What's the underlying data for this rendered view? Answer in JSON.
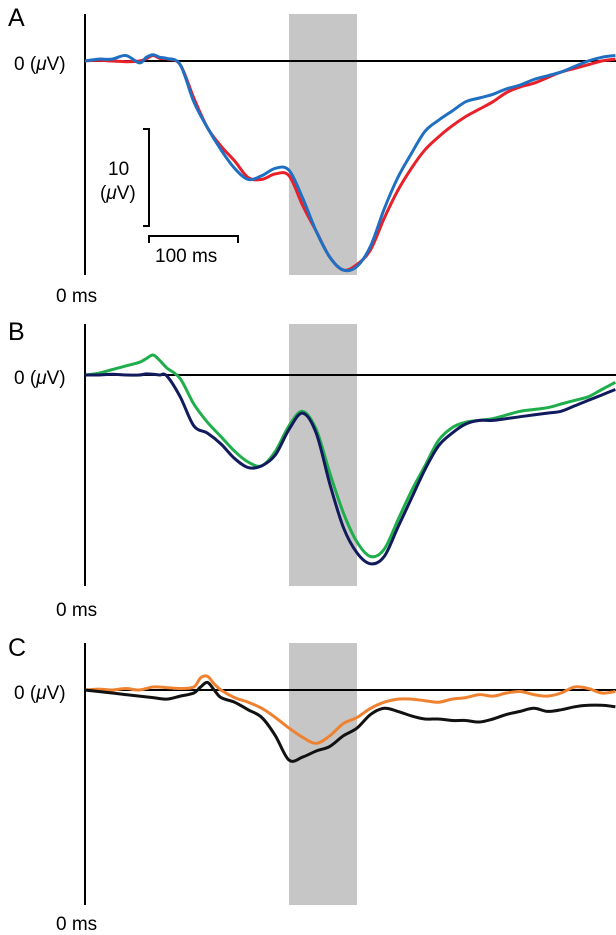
{
  "figure": {
    "panels": [
      {
        "letter": "A",
        "zero_label_pre": "0 (",
        "zero_label_mu": "μ",
        "zero_label_post": "V)",
        "time_label": "0 ms",
        "highlight_window_ms": [
          300,
          400
        ],
        "series": [
          {
            "color": "#e8202a",
            "x": [
              0,
              20,
              40,
              60,
              80,
              90,
              100,
              110,
              120,
              140,
              160,
              180,
              200,
              220,
              240,
              260,
              280,
              300,
              320,
              340,
              360,
              380,
              400,
              420,
              440,
              460,
              480,
              500,
              520,
              540,
              560,
              580,
              600,
              620,
              640,
              660,
              680,
              700,
              720,
              740,
              760,
              780
            ],
            "y": [
              0,
              0.2,
              0,
              -0.2,
              0,
              0.6,
              1.5,
              0.7,
              0.6,
              -1,
              -10,
              -18,
              -23,
              -27,
              -31.5,
              -32,
              -30.5,
              -31,
              -39,
              -46,
              -53,
              -56.5,
              -55,
              -51,
              -42.5,
              -35,
              -29,
              -24,
              -20.5,
              -17.5,
              -15,
              -13,
              -11,
              -8.5,
              -7,
              -6,
              -4.5,
              -3,
              -2,
              -1,
              0,
              0.5
            ]
          },
          {
            "color": "#1f6fc2",
            "x": [
              0,
              20,
              40,
              60,
              80,
              90,
              100,
              110,
              120,
              140,
              160,
              180,
              200,
              220,
              240,
              260,
              280,
              300,
              320,
              340,
              360,
              380,
              400,
              420,
              440,
              460,
              480,
              500,
              520,
              540,
              560,
              580,
              600,
              620,
              640,
              660,
              680,
              700,
              720,
              740,
              760,
              780
            ],
            "y": [
              0,
              0.5,
              0.5,
              1.5,
              -0.5,
              1,
              1.7,
              1,
              0.7,
              -1,
              -11,
              -18,
              -24,
              -29,
              -32,
              -31,
              -29,
              -29.5,
              -37,
              -46,
              -53,
              -56.5,
              -55.5,
              -50,
              -40,
              -31.5,
              -25,
              -19,
              -16,
              -13.5,
              -11,
              -10,
              -9,
              -7.5,
              -6.5,
              -5,
              -4,
              -3,
              -1.5,
              0,
              1,
              1.5
            ]
          }
        ]
      },
      {
        "letter": "B",
        "zero_label_pre": "0 (",
        "zero_label_mu": "μ",
        "zero_label_post": "V)",
        "time_label": "0 ms",
        "highlight_window_ms": [
          300,
          400
        ],
        "series": [
          {
            "color": "#1fae4b",
            "x": [
              0,
              20,
              40,
              60,
              80,
              90,
              100,
              110,
              120,
              140,
              160,
              180,
              200,
              220,
              240,
              260,
              280,
              300,
              320,
              340,
              360,
              380,
              400,
              420,
              440,
              460,
              480,
              500,
              520,
              540,
              560,
              580,
              600,
              620,
              640,
              660,
              680,
              700,
              720,
              740,
              760,
              780
            ],
            "y": [
              0,
              0.5,
              1.5,
              2.5,
              3.5,
              4.5,
              5.5,
              4,
              2,
              -1,
              -8,
              -13,
              -17,
              -21,
              -24,
              -25,
              -21,
              -14,
              -10,
              -15,
              -27,
              -38,
              -46,
              -50,
              -48,
              -40,
              -32,
              -25,
              -18,
              -14.5,
              -13,
              -12.5,
              -12,
              -11,
              -10,
              -9.5,
              -9,
              -8,
              -7,
              -6,
              -4,
              -2
            ]
          },
          {
            "color": "#121a5e",
            "x": [
              0,
              20,
              40,
              60,
              80,
              90,
              100,
              110,
              120,
              140,
              160,
              180,
              200,
              220,
              240,
              260,
              280,
              300,
              320,
              340,
              360,
              380,
              400,
              420,
              440,
              460,
              480,
              500,
              520,
              540,
              560,
              580,
              600,
              620,
              640,
              660,
              680,
              700,
              720,
              740,
              760,
              780
            ],
            "y": [
              0,
              0,
              0.2,
              0,
              0,
              0.3,
              0.2,
              0,
              -0.2,
              -6,
              -14,
              -16,
              -19,
              -23,
              -25.5,
              -25,
              -22,
              -15,
              -10.5,
              -16,
              -30,
              -42,
              -49,
              -52,
              -50,
              -42,
              -34,
              -26,
              -19.5,
              -16,
              -13.5,
              -12.5,
              -12.5,
              -12,
              -11.5,
              -11,
              -10.5,
              -10,
              -8.5,
              -7,
              -5.5,
              -4
            ]
          }
        ]
      },
      {
        "letter": "C",
        "zero_label_pre": "0 (",
        "zero_label_mu": "μ",
        "zero_label_post": "V)",
        "time_label": "0 ms",
        "highlight_window_ms": [
          300,
          400
        ],
        "series": [
          {
            "color": "#ef8231",
            "x": [
              0,
              20,
              40,
              60,
              80,
              100,
              120,
              140,
              160,
              170,
              180,
              190,
              200,
              220,
              240,
              260,
              280,
              300,
              320,
              340,
              360,
              380,
              400,
              420,
              440,
              460,
              480,
              500,
              520,
              540,
              560,
              580,
              600,
              620,
              640,
              660,
              680,
              700,
              720,
              740,
              760,
              780
            ],
            "y": [
              0,
              0.3,
              0,
              0.5,
              0,
              1,
              0.8,
              0.5,
              1,
              4,
              4.5,
              2,
              0,
              -2.5,
              -4,
              -6,
              -9,
              -12.5,
              -15.5,
              -17.5,
              -15,
              -11,
              -9,
              -6,
              -4,
              -3,
              -3,
              -3.5,
              -4,
              -3,
              -2.5,
              -1.5,
              -2,
              -1,
              -0.5,
              -1.5,
              -2,
              -1,
              1,
              0.5,
              -1,
              -0.5
            ]
          },
          {
            "color": "#111111",
            "x": [
              0,
              20,
              40,
              60,
              80,
              100,
              120,
              140,
              160,
              170,
              180,
              190,
              200,
              220,
              240,
              260,
              280,
              300,
              320,
              340,
              360,
              380,
              400,
              420,
              440,
              460,
              480,
              500,
              520,
              540,
              560,
              580,
              600,
              620,
              640,
              660,
              680,
              700,
              720,
              740,
              760,
              780
            ],
            "y": [
              0,
              -0.5,
              -1,
              -1.5,
              -2,
              -2.5,
              -3,
              -2,
              -1,
              1,
              2.5,
              0,
              -2.5,
              -4,
              -6.5,
              -9,
              -15,
              -23,
              -22,
              -20,
              -18.5,
              -15,
              -12.5,
              -8,
              -6,
              -7,
              -8.5,
              -9.5,
              -9.5,
              -10,
              -10,
              -10.5,
              -9.5,
              -8,
              -7,
              -6,
              -7,
              -6.5,
              -5.5,
              -5,
              -5,
              -5.5
            ]
          }
        ]
      }
    ],
    "scale_bar": {
      "amplitude_value": "10",
      "amplitude_unit_pre": "(",
      "amplitude_unit_mu": "μ",
      "amplitude_unit_post": "V)",
      "time_value_label": "100 ms",
      "amplitude_uV": 10,
      "time_ms": 100
    }
  },
  "chart_data": [
    {
      "type": "line",
      "panel": "A",
      "title": "",
      "xlabel": "",
      "ylabel": "",
      "x_start_label": "0 ms",
      "y_zero_label": "0 (μV)",
      "shaded_window_ms": [
        300,
        400
      ],
      "series_ref": "figure.panels.0.series",
      "xlim": [
        0,
        780
      ],
      "ylim": [
        -58,
        5
      ]
    },
    {
      "type": "line",
      "panel": "B",
      "title": "",
      "xlabel": "",
      "ylabel": "",
      "x_start_label": "0 ms",
      "y_zero_label": "0 (μV)",
      "shaded_window_ms": [
        300,
        400
      ],
      "series_ref": "figure.panels.1.series",
      "xlim": [
        0,
        780
      ],
      "ylim": [
        -58,
        15
      ]
    },
    {
      "type": "line",
      "panel": "C",
      "title": "",
      "xlabel": "",
      "ylabel": "",
      "x_start_label": "0 ms",
      "y_zero_label": "0 (μV)",
      "shaded_window_ms": [
        300,
        400
      ],
      "series_ref": "figure.panels.2.series",
      "xlim": [
        0,
        780
      ],
      "ylim": [
        -58,
        15
      ]
    }
  ]
}
